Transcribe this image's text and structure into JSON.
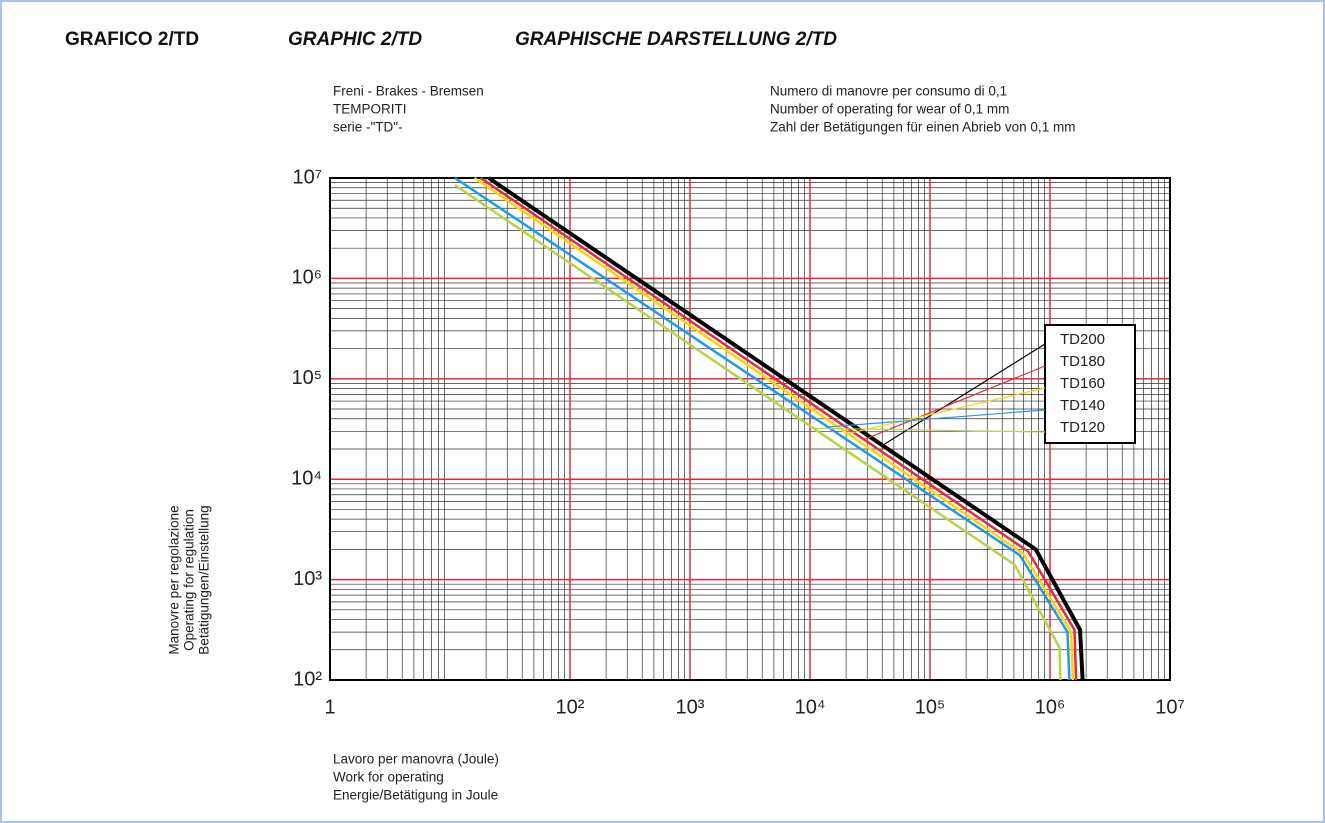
{
  "header": [
    "GRAFICO 2/TD",
    "GRAPHIC 2/TD",
    "GRAPHISCHE DARSTELLUNG 2/TD"
  ],
  "chart_data": {
    "type": "line",
    "notes_left": [
      "Freni - Brakes - Bremsen",
      "TEMPORITI",
      "serie -\"TD\"-"
    ],
    "notes_right": [
      "Numero di manovre per consumo di 0,1",
      "Number of operating for wear of 0,1 mm",
      "Zahl der Betätigungen für einen Abrieb von 0,1 mm"
    ],
    "ylabel": [
      "Manovre per regolazione",
      "Operating for regulation",
      "Betätigungen/Einstellung"
    ],
    "xlabel": [
      "Lavoro per manovra (Joule)",
      "Work for operating",
      "Energie/Betätigung in Joule"
    ],
    "xlog": true,
    "ylog": true,
    "grid": true,
    "minor_grid": true,
    "legend": "right",
    "xlim": [
      1,
      10000000
    ],
    "xticks": [
      1,
      {
        "value": 100,
        "label": "10²"
      },
      {
        "value": 1000,
        "label": "10³"
      },
      {
        "value": 10000,
        "label": "10⁴"
      },
      {
        "value": 100000,
        "label": "10⁵"
      },
      {
        "value": 1000000,
        "label": "10⁶"
      },
      {
        "value": 10000000,
        "label": "10⁷"
      }
    ],
    "ylim": [
      100,
      10000000
    ],
    "yticks": [
      {
        "value": 100,
        "label": "10²"
      },
      {
        "value": 1000,
        "label": "10³"
      },
      {
        "value": 10000,
        "label": "10⁴"
      },
      {
        "value": 100000,
        "label": "10⁵"
      },
      {
        "value": 1000000,
        "label": "10⁶"
      },
      {
        "value": 10000000,
        "label": "10⁷"
      }
    ],
    "series": [
      {
        "name": "TD200",
        "color": "#000000",
        "x": [
          21,
          760000,
          1780000,
          1870000
        ],
        "values": [
          10000000,
          2000,
          316,
          100
        ]
      },
      {
        "name": "TD180",
        "color": "#e8283c",
        "x": [
          18,
          660000,
          1600000,
          1650000
        ],
        "values": [
          10000000,
          1900,
          316,
          100
        ]
      },
      {
        "name": "TD160",
        "color": "#ffd400",
        "x": [
          16,
          600000,
          1500000,
          1550000
        ],
        "values": [
          10000000,
          1800,
          300,
          100
        ]
      },
      {
        "name": "TD140",
        "color": "#1e9be8",
        "x": [
          11,
          560000,
          1400000,
          1450000
        ],
        "values": [
          10000000,
          1750,
          300,
          100
        ]
      },
      {
        "name": "TD120",
        "color": "#b5d44a",
        "x": [
          11,
          510000,
          1200000,
          1220000
        ],
        "values": [
          8500000,
          1400,
          210,
          100
        ]
      }
    ]
  }
}
